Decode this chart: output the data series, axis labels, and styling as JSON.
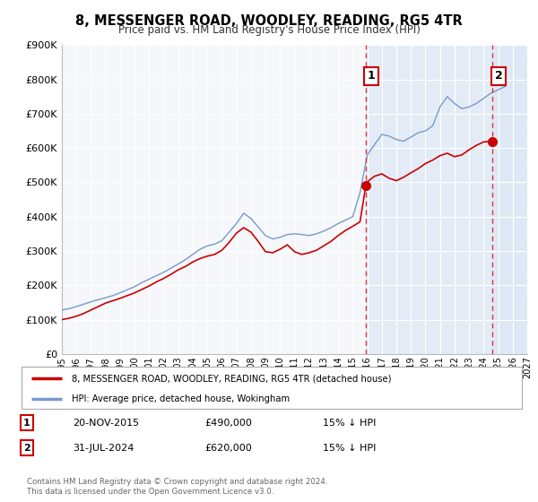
{
  "title": "8, MESSENGER ROAD, WOODLEY, READING, RG5 4TR",
  "subtitle": "Price paid vs. HM Land Registry's House Price Index (HPI)",
  "ylim": [
    0,
    900000
  ],
  "xlim_start": 1995.0,
  "xlim_end": 2027.0,
  "ytick_labels": [
    "£0",
    "£100K",
    "£200K",
    "£300K",
    "£400K",
    "£500K",
    "£600K",
    "£700K",
    "£800K",
    "£900K"
  ],
  "ytick_values": [
    0,
    100000,
    200000,
    300000,
    400000,
    500000,
    600000,
    700000,
    800000,
    900000
  ],
  "xtick_years": [
    1995,
    1996,
    1997,
    1998,
    1999,
    2000,
    2001,
    2002,
    2003,
    2004,
    2005,
    2006,
    2007,
    2008,
    2009,
    2010,
    2011,
    2012,
    2013,
    2014,
    2015,
    2016,
    2017,
    2018,
    2019,
    2020,
    2021,
    2022,
    2023,
    2024,
    2025,
    2026,
    2027
  ],
  "sale1_x": 2015.9,
  "sale1_y": 490000,
  "sale2_x": 2024.58,
  "sale2_y": 620000,
  "sale1_date": "20-NOV-2015",
  "sale1_price": "£490,000",
  "sale1_hpi": "15% ↓ HPI",
  "sale2_date": "31-JUL-2024",
  "sale2_price": "£620,000",
  "sale2_hpi": "15% ↓ HPI",
  "vline_color": "#dd3333",
  "red_line_color": "#cc0000",
  "blue_line_color": "#7799cc",
  "blue_bg_color": "#e8f0fa",
  "grid_color": "#ffffff",
  "plot_bg_color": "#f5f5f5",
  "hatch_bg_color": "#e8eef8",
  "legend_label_red": "8, MESSENGER ROAD, WOODLEY, READING, RG5 4TR (detached house)",
  "legend_label_blue": "HPI: Average price, detached house, Wokingham",
  "footnote": "Contains HM Land Registry data © Crown copyright and database right 2024.\nThis data is licensed under the Open Government Licence v3.0.",
  "hpi_years": [
    1995,
    1995.5,
    1996,
    1996.5,
    1997,
    1997.5,
    1998,
    1998.5,
    1999,
    1999.5,
    2000,
    2000.5,
    2001,
    2001.5,
    2002,
    2002.5,
    2003,
    2003.5,
    2004,
    2004.5,
    2005,
    2005.5,
    2006,
    2006.5,
    2007,
    2007.5,
    2008,
    2008.5,
    2009,
    2009.5,
    2010,
    2010.5,
    2011,
    2011.5,
    2012,
    2012.5,
    2013,
    2013.5,
    2014,
    2014.5,
    2015,
    2015.5,
    2016,
    2016.5,
    2017,
    2017.5,
    2018,
    2018.5,
    2019,
    2019.5,
    2020,
    2020.5,
    2021,
    2021.5,
    2022,
    2022.5,
    2023,
    2023.5,
    2024,
    2024.5,
    2025,
    2025.5
  ],
  "hpi_values": [
    128000,
    132000,
    138000,
    145000,
    152000,
    158000,
    164000,
    170000,
    178000,
    187000,
    196000,
    208000,
    218000,
    228000,
    238000,
    250000,
    262000,
    275000,
    290000,
    305000,
    315000,
    320000,
    330000,
    355000,
    380000,
    410000,
    395000,
    370000,
    345000,
    335000,
    340000,
    348000,
    350000,
    348000,
    345000,
    350000,
    358000,
    368000,
    380000,
    390000,
    400000,
    470000,
    580000,
    610000,
    640000,
    635000,
    625000,
    620000,
    632000,
    645000,
    650000,
    665000,
    720000,
    750000,
    730000,
    715000,
    720000,
    730000,
    745000,
    760000,
    770000,
    780000
  ],
  "red_years": [
    1995,
    1995.5,
    1996,
    1996.5,
    1997,
    1997.5,
    1998,
    1998.5,
    1999,
    1999.5,
    2000,
    2000.5,
    2001,
    2001.5,
    2002,
    2002.5,
    2003,
    2003.5,
    2004,
    2004.5,
    2005,
    2005.5,
    2006,
    2006.5,
    2007,
    2007.5,
    2008,
    2008.5,
    2009,
    2009.5,
    2010,
    2010.5,
    2011,
    2011.5,
    2012,
    2012.5,
    2013,
    2013.5,
    2014,
    2014.5,
    2015,
    2015.5,
    2015.9,
    2016,
    2016.5,
    2017,
    2017.5,
    2018,
    2018.5,
    2019,
    2019.5,
    2020,
    2020.5,
    2021,
    2021.5,
    2022,
    2022.5,
    2023,
    2023.5,
    2024,
    2024.58
  ],
  "red_values": [
    100000,
    104000,
    110000,
    118000,
    128000,
    138000,
    148000,
    155000,
    162000,
    170000,
    178000,
    188000,
    198000,
    210000,
    220000,
    232000,
    245000,
    255000,
    268000,
    278000,
    285000,
    290000,
    302000,
    325000,
    352000,
    368000,
    355000,
    328000,
    298000,
    295000,
    305000,
    318000,
    298000,
    290000,
    295000,
    302000,
    315000,
    328000,
    345000,
    360000,
    372000,
    385000,
    490000,
    502000,
    518000,
    525000,
    512000,
    505000,
    515000,
    528000,
    540000,
    555000,
    565000,
    578000,
    585000,
    575000,
    580000,
    595000,
    608000,
    618000,
    620000
  ]
}
